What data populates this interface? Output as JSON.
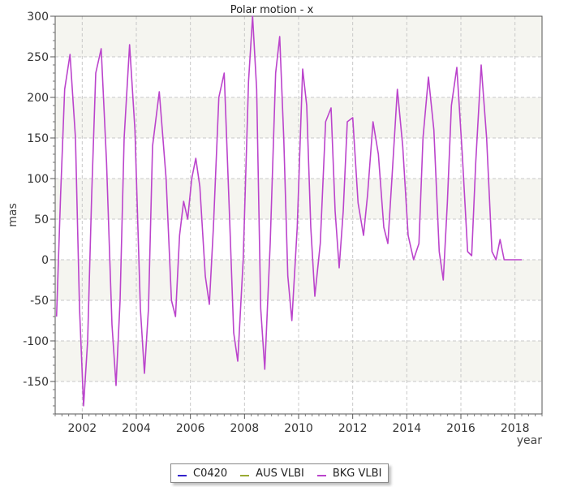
{
  "chart_data": {
    "type": "line",
    "title": "Polar motion - x",
    "xlabel": "year",
    "ylabel": "mas",
    "xlim": [
      2001.0,
      2019.0
    ],
    "ylim": [
      -190,
      300
    ],
    "x_ticks": [
      2002,
      2004,
      2006,
      2008,
      2010,
      2012,
      2014,
      2016,
      2018
    ],
    "y_ticks": [
      -150,
      -100,
      -50,
      0,
      50,
      100,
      150,
      200,
      250,
      300
    ],
    "grid": true,
    "legend_position": "bottom-center",
    "series": [
      {
        "name": "C0420",
        "color": "#3322cc"
      },
      {
        "name": "AUS VLBI",
        "color": "#99aa33"
      },
      {
        "name": "BKG VLBI",
        "color": "#bb44cc",
        "x": [
          2001.05,
          2001.2,
          2001.35,
          2001.55,
          2001.75,
          2001.9,
          2002.05,
          2002.2,
          2002.35,
          2002.5,
          2002.7,
          2002.9,
          2003.1,
          2003.25,
          2003.4,
          2003.55,
          2003.75,
          2003.95,
          2004.15,
          2004.3,
          2004.45,
          2004.6,
          2004.85,
          2005.1,
          2005.3,
          2005.45,
          2005.6,
          2005.75,
          2005.9,
          2006.05,
          2006.2,
          2006.35,
          2006.55,
          2006.7,
          2006.85,
          2007.05,
          2007.25,
          2007.45,
          2007.6,
          2007.75,
          2007.95,
          2008.15,
          2008.3,
          2008.45,
          2008.6,
          2008.75,
          2008.95,
          2009.15,
          2009.3,
          2009.45,
          2009.6,
          2009.75,
          2009.95,
          2010.15,
          2010.3,
          2010.45,
          2010.6,
          2010.8,
          2011.0,
          2011.2,
          2011.35,
          2011.5,
          2011.65,
          2011.8,
          2012.0,
          2012.2,
          2012.4,
          2012.55,
          2012.75,
          2012.95,
          2013.15,
          2013.3,
          2013.45,
          2013.65,
          2013.85,
          2014.05,
          2014.25,
          2014.45,
          2014.6,
          2014.8,
          2015.0,
          2015.2,
          2015.35,
          2015.5,
          2015.65,
          2015.85,
          2016.05,
          2016.25,
          2016.4,
          2016.55,
          2016.75,
          2016.95,
          2017.15,
          2017.3,
          2017.45,
          2017.6,
          2017.75,
          2017.95,
          2018.1,
          2018.25
        ],
        "values": [
          -70,
          80,
          210,
          253,
          150,
          -60,
          -180,
          -100,
          80,
          230,
          260,
          120,
          -80,
          -155,
          -50,
          150,
          265,
          160,
          -60,
          -140,
          -60,
          140,
          207,
          100,
          -50,
          -70,
          30,
          72,
          50,
          100,
          125,
          90,
          -20,
          -55,
          40,
          200,
          230,
          50,
          -90,
          -125,
          0,
          220,
          300,
          210,
          -60,
          -135,
          20,
          230,
          275,
          150,
          -20,
          -75,
          40,
          235,
          190,
          40,
          -45,
          20,
          170,
          187,
          60,
          -10,
          60,
          170,
          175,
          70,
          30,
          80,
          170,
          130,
          40,
          20,
          100,
          210,
          140,
          30,
          0,
          20,
          150,
          225,
          160,
          10,
          -25,
          70,
          190,
          237,
          130,
          10,
          5,
          120,
          240,
          150,
          10,
          0,
          25,
          0,
          0,
          0,
          0,
          0
        ]
      }
    ]
  }
}
